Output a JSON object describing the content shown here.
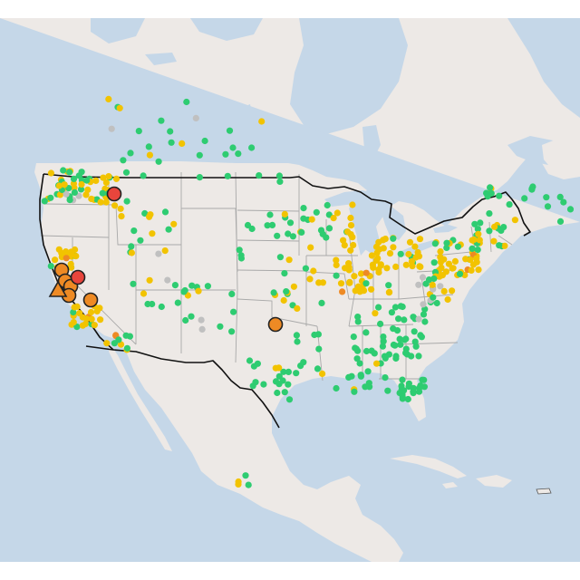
{
  "map": {
    "colors": {
      "water": "#c5d7e8",
      "land": "#ede9e6",
      "land_shade": "#e3dedb",
      "state_border": "#a9a9a9",
      "country_border": "#111111",
      "marker_outline": "#222222"
    },
    "categories": [
      {
        "id": "good",
        "color": "#2ecc71"
      },
      {
        "id": "moderate",
        "color": "#f2c300"
      },
      {
        "id": "usg",
        "color": "#ee8a24"
      },
      {
        "id": "unhealthy",
        "color": "#e8453c"
      },
      {
        "id": "no_data",
        "color": "#c0c0c0"
      }
    ],
    "large_markers": [
      {
        "cat": "usg",
        "shape": "circle"
      },
      {
        "cat": "usg",
        "shape": "circle"
      },
      {
        "cat": "usg",
        "shape": "circle"
      },
      {
        "cat": "usg",
        "shape": "circle"
      },
      {
        "cat": "usg",
        "shape": "circle"
      },
      {
        "cat": "usg",
        "shape": "circle"
      },
      {
        "cat": "unhealthy",
        "shape": "circle"
      },
      {
        "cat": "unhealthy",
        "shape": "circle"
      },
      {
        "cat": "usg",
        "shape": "triangle"
      }
    ]
  }
}
